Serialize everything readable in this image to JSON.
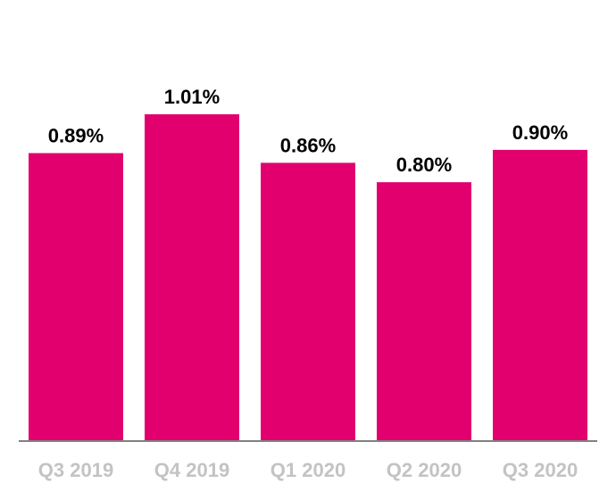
{
  "chart_data": {
    "type": "bar",
    "categories": [
      "Q3 2019",
      "Q4 2019",
      "Q1 2020",
      "Q2 2020",
      "Q3 2020"
    ],
    "values": [
      0.89,
      1.01,
      0.86,
      0.8,
      0.9
    ],
    "data_labels": [
      "0.89%",
      "1.01%",
      "0.86%",
      "0.80%",
      "0.90%"
    ],
    "title": "",
    "xlabel": "",
    "ylabel": "",
    "ylim": [
      0,
      1.01
    ],
    "grid": false,
    "legend": "none",
    "colors": {
      "bar": "#e2006f",
      "data_label": "#000000",
      "tick_label": "#c3c3c3",
      "axis": "#808080"
    }
  }
}
